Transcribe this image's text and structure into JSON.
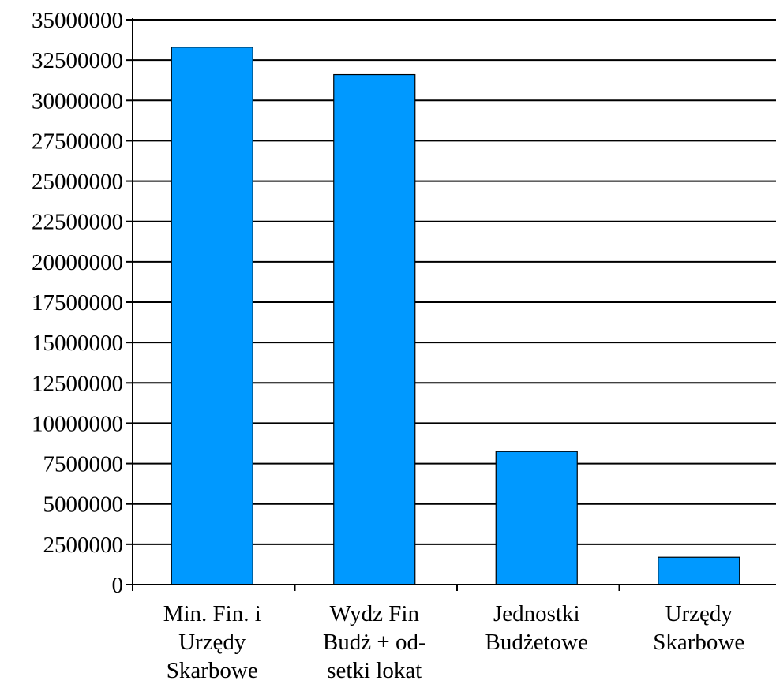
{
  "chart_data": {
    "type": "bar",
    "title": "",
    "xlabel": "",
    "ylabel": "",
    "ylim": [
      0,
      35000000
    ],
    "yticks": [
      0,
      2500000,
      5000000,
      7500000,
      10000000,
      12500000,
      15000000,
      17500000,
      20000000,
      22500000,
      25000000,
      27500000,
      30000000,
      32500000,
      35000000
    ],
    "ytick_labels": [
      "0",
      "2500000",
      "5000000",
      "7500000",
      "10000000",
      "12500000",
      "15000000",
      "17500000",
      "20000000",
      "22500000",
      "25000000",
      "27500000",
      "30000000",
      "32500000",
      "35000000"
    ],
    "categories": [
      [
        "Min. Fin. i",
        "Urzędy",
        "Skarbowe"
      ],
      [
        "Wydz Fin",
        "Budż + od-",
        "setki  lokat"
      ],
      [
        "Jednostki",
        "Budżetowe"
      ],
      [
        "Urzędy",
        "Skarbowe"
      ]
    ],
    "values": [
      33300000,
      31600000,
      8250000,
      1700000
    ],
    "grid": true,
    "legend": "none",
    "colors": {
      "bar": "#0099ff",
      "bar_stroke": "#000000",
      "grid": "#000000",
      "axis": "#000000"
    }
  }
}
